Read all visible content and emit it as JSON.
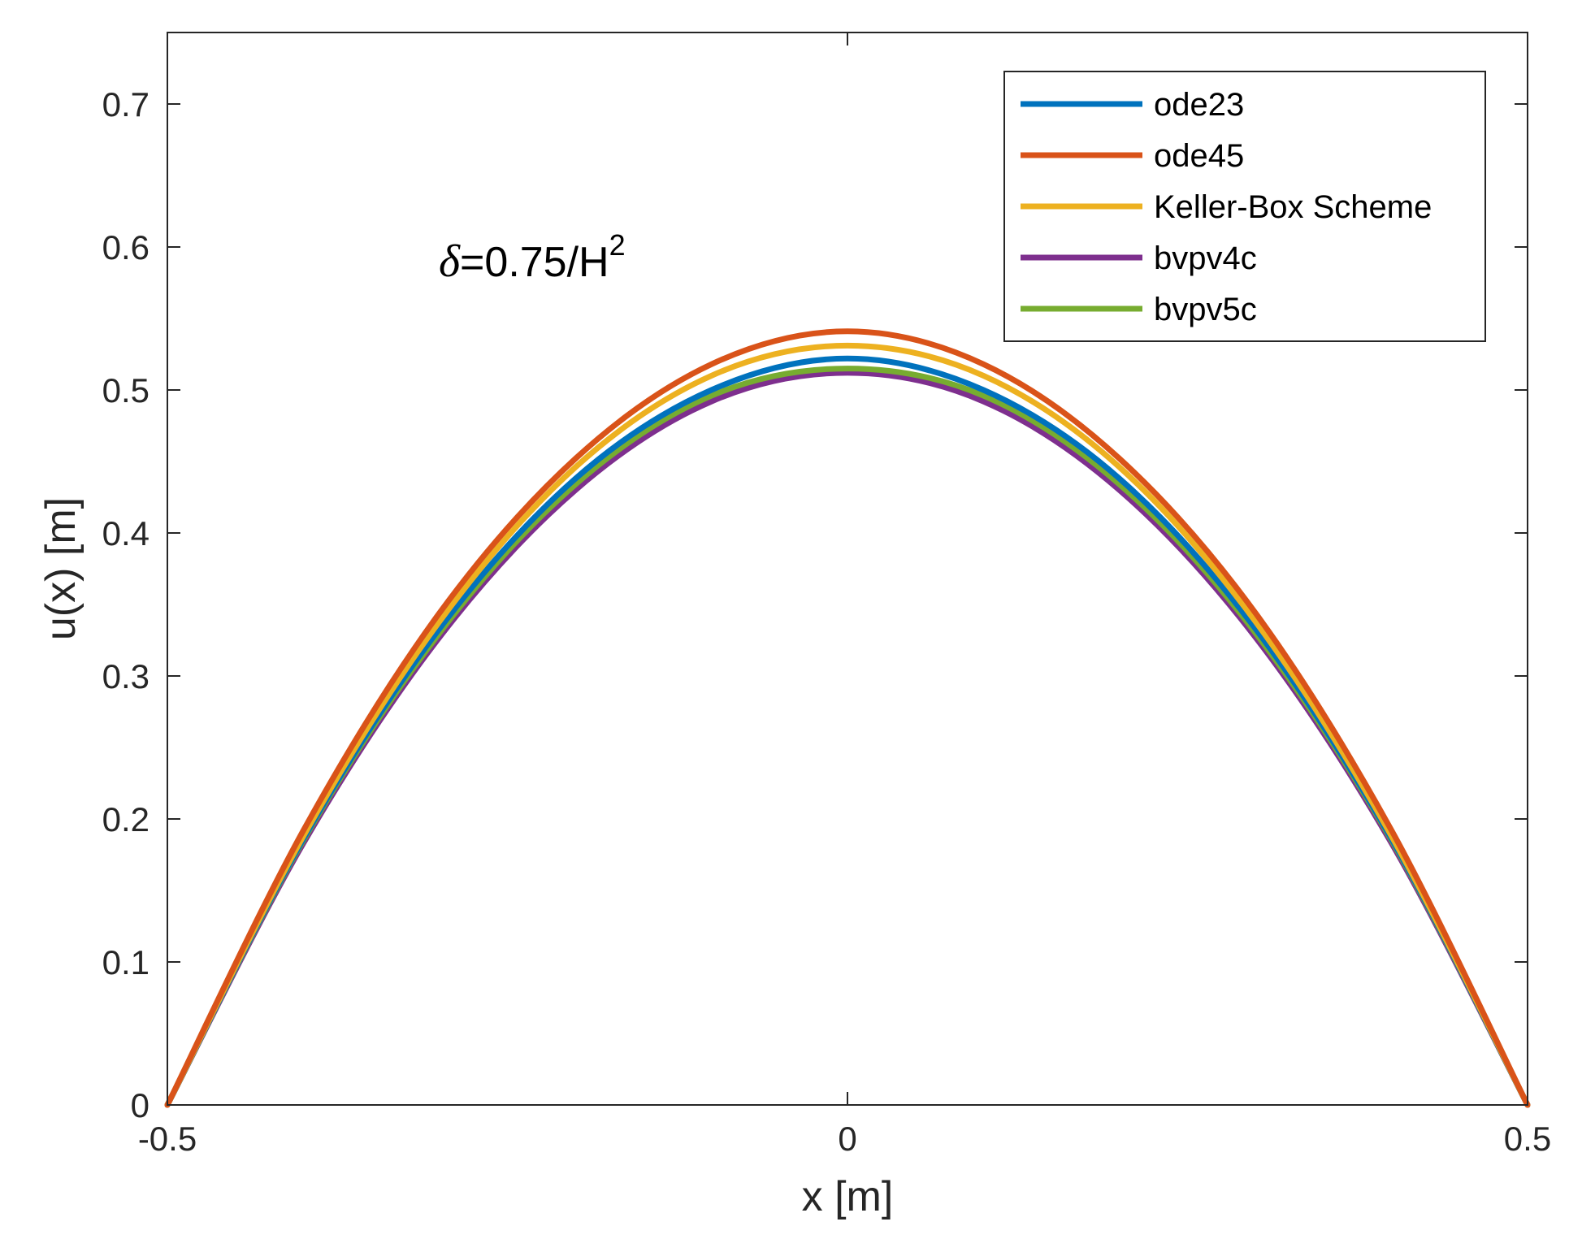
{
  "chart_data": {
    "type": "line",
    "title": "",
    "xlabel": "x [m]",
    "ylabel": "u(x) [m]",
    "xlim": [
      -0.5,
      0.5
    ],
    "ylim": [
      0,
      0.75
    ],
    "xticks": [
      -0.5,
      0,
      0.5
    ],
    "xtick_labels": [
      "-0.5",
      "0",
      "0.5"
    ],
    "yticks": [
      0,
      0.1,
      0.2,
      0.3,
      0.4,
      0.5,
      0.6,
      0.7
    ],
    "ytick_labels": [
      "0",
      "0.1",
      "0.2",
      "0.3",
      "0.4",
      "0.5",
      "0.6",
      "0.7"
    ],
    "grid": false,
    "legend_position": "top-right",
    "annotation": {
      "symbol": "δ",
      "text": "=0.75/H",
      "superscript": "2"
    },
    "x": [
      -0.5,
      -0.4,
      -0.3,
      -0.2,
      -0.1,
      0,
      0.1,
      0.2,
      0.3,
      0.4,
      0.5
    ],
    "series": [
      {
        "name": "ode23",
        "color": "#0072BD",
        "values": [
          0,
          0.186,
          0.333,
          0.438,
          0.5,
          0.522,
          0.5,
          0.438,
          0.333,
          0.186,
          0
        ]
      },
      {
        "name": "ode45",
        "color": "#D95319",
        "values": [
          0,
          0.192,
          0.344,
          0.452,
          0.518,
          0.541,
          0.518,
          0.452,
          0.344,
          0.192,
          0
        ]
      },
      {
        "name": "Keller-Box Scheme",
        "color": "#EDB120",
        "values": [
          0,
          0.188,
          0.338,
          0.446,
          0.51,
          0.531,
          0.51,
          0.446,
          0.338,
          0.188,
          0
        ]
      },
      {
        "name": "bvpv4c",
        "color": "#7E2F8E",
        "values": [
          0,
          0.183,
          0.327,
          0.43,
          0.492,
          0.512,
          0.492,
          0.43,
          0.327,
          0.183,
          0
        ]
      },
      {
        "name": "bvpv5c",
        "color": "#77AC30",
        "values": [
          0,
          0.185,
          0.33,
          0.434,
          0.496,
          0.515,
          0.496,
          0.434,
          0.33,
          0.185,
          0
        ]
      }
    ]
  }
}
